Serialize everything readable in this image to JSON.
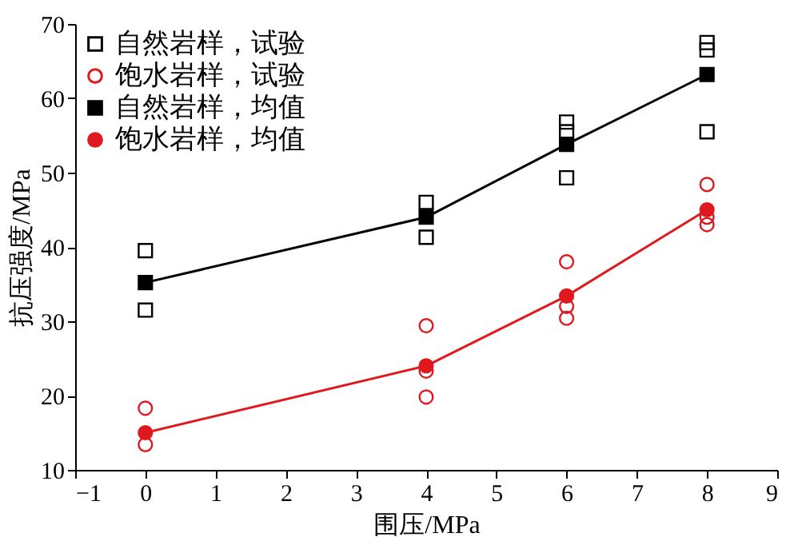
{
  "chart_data": {
    "type": "scatter",
    "xlabel": "围压/MPa",
    "ylabel": "抗压强度/MPa",
    "xlim": [
      -1,
      9
    ],
    "xticks": [
      -1,
      0,
      1,
      2,
      3,
      4,
      5,
      6,
      7,
      8,
      9
    ],
    "ylim": [
      10,
      70
    ],
    "yticks": [
      10,
      20,
      30,
      40,
      50,
      60,
      70
    ],
    "grid": false,
    "legend": "top left",
    "series": [
      {
        "name": "自然岩样，试验",
        "color": "#000000",
        "marker": "square",
        "type": "scatter",
        "x": [
          0,
          0,
          4,
          4,
          6,
          6,
          6,
          8,
          8,
          8
        ],
        "values": [
          39.5,
          31.5,
          46,
          41.3,
          56.8,
          55.5,
          49.3,
          67.5,
          66.5,
          55.5
        ]
      },
      {
        "name": "饱水岩样，试验",
        "color": "#e0191f",
        "marker": "circle",
        "type": "scatter",
        "x": [
          0,
          0,
          4,
          4,
          4,
          6,
          6,
          6,
          8,
          8,
          8
        ],
        "values": [
          18.3,
          13.4,
          29.4,
          23.3,
          19.8,
          38,
          32,
          30.4,
          48.4,
          44,
          43
        ]
      },
      {
        "name": "自然岩样，均值",
        "color": "#000000",
        "marker": "square",
        "type": "line",
        "x": [
          0,
          4,
          6,
          8
        ],
        "values": [
          35.2,
          44,
          53.8,
          63.2
        ]
      },
      {
        "name": "饱水岩样，均值",
        "color": "#e0191f",
        "marker": "circle",
        "type": "line",
        "x": [
          0,
          4,
          6,
          8
        ],
        "values": [
          15,
          24,
          33.4,
          45
        ]
      }
    ]
  }
}
